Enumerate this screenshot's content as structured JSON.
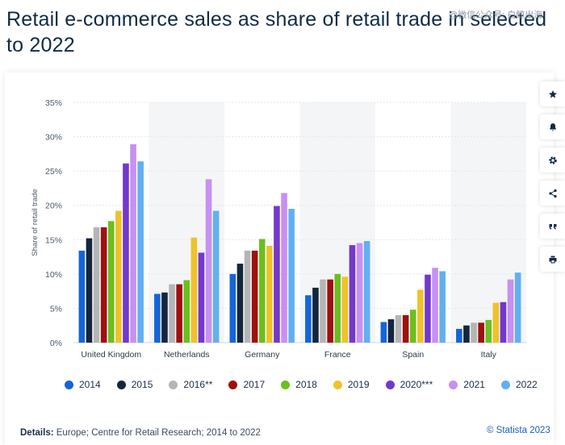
{
  "page": {
    "title": "Retail e-commerce sales as share of retail trade in selected to 2022",
    "watermark": "@微信公众号: 白鲸出海",
    "details_label": "Details:",
    "details_text": "Europe; Centre for Retail Research; 2014 to 2022",
    "copyright": "© Statista 2023"
  },
  "sidebar": {
    "buttons": [
      "star-icon",
      "bell-icon",
      "gear-icon",
      "share-icon",
      "quote-icon",
      "print-icon"
    ]
  },
  "chart_data": {
    "type": "bar",
    "title": "",
    "xlabel": "",
    "ylabel": "Share of retail trade",
    "ylim": [
      0,
      35
    ],
    "yticks": [
      "0%",
      "5%",
      "10%",
      "15%",
      "20%",
      "25%",
      "30%",
      "35%"
    ],
    "grid": true,
    "legend_position": "bottom",
    "categories": [
      "United Kingdom",
      "Netherlands",
      "Germany",
      "France",
      "Spain",
      "Italy"
    ],
    "series": [
      {
        "name": "2014",
        "color": "#1565d8",
        "values": [
          13.4,
          7.1,
          10.0,
          6.9,
          3.0,
          2.0
        ]
      },
      {
        "name": "2015",
        "color": "#14263d",
        "values": [
          15.2,
          7.3,
          11.5,
          8.0,
          3.4,
          2.5
        ]
      },
      {
        "name": "2016**",
        "color": "#b5b5b5",
        "values": [
          16.8,
          8.5,
          13.4,
          9.2,
          4.0,
          2.9
        ]
      },
      {
        "name": "2017",
        "color": "#9e1010",
        "values": [
          16.8,
          8.5,
          13.4,
          9.2,
          4.0,
          2.9
        ]
      },
      {
        "name": "2018",
        "color": "#6bbf1f",
        "values": [
          17.7,
          9.1,
          15.1,
          10.0,
          4.8,
          3.3
        ]
      },
      {
        "name": "2019",
        "color": "#f0c229",
        "values": [
          19.2,
          15.3,
          14.1,
          9.6,
          7.7,
          5.8
        ]
      },
      {
        "name": "2020***",
        "color": "#7238cc",
        "values": [
          26.1,
          13.1,
          19.9,
          14.2,
          9.9,
          5.9
        ]
      },
      {
        "name": "2021",
        "color": "#c790f2",
        "values": [
          28.9,
          23.8,
          21.8,
          14.5,
          10.9,
          9.2
        ]
      },
      {
        "name": "2022",
        "color": "#62b0f0",
        "values": [
          26.4,
          19.2,
          19.5,
          14.8,
          10.4,
          10.2
        ]
      }
    ]
  }
}
